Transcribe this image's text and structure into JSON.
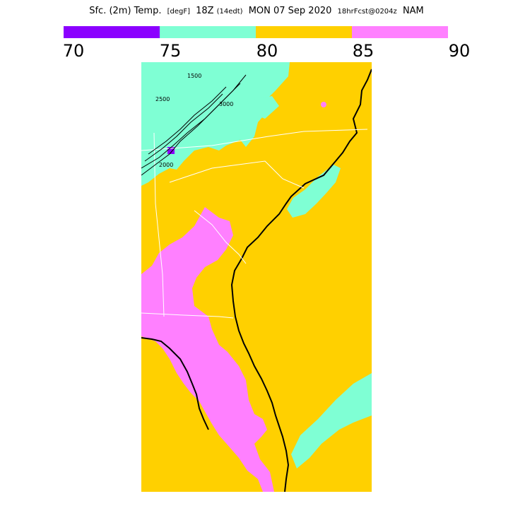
{
  "header": {
    "field": "Sfc. (2m) Temp.",
    "units": "[degF]",
    "valid": "18Z",
    "local": "(14edt)",
    "date": "MON 07 Sep 2020",
    "forecast": "18hrFcst@0204z",
    "model": "NAM"
  },
  "legend": {
    "bins": [
      {
        "color": "#8b00ff"
      },
      {
        "color": "#7fffd4"
      },
      {
        "color": "#ffd000"
      },
      {
        "color": "#ff80ff"
      }
    ],
    "ticks": [
      "70",
      "75",
      "80",
      "85",
      "90"
    ]
  },
  "map": {
    "colors": {
      "t80_85": "#ffd000",
      "t75_80": "#7fffd4",
      "t85_90": "#ff80ff",
      "t70_75": "#8b00ff",
      "coast": "#000000",
      "borders": "#ffffff"
    },
    "contour_labels": [
      "1500",
      "2500",
      "3000",
      "2000"
    ]
  }
}
